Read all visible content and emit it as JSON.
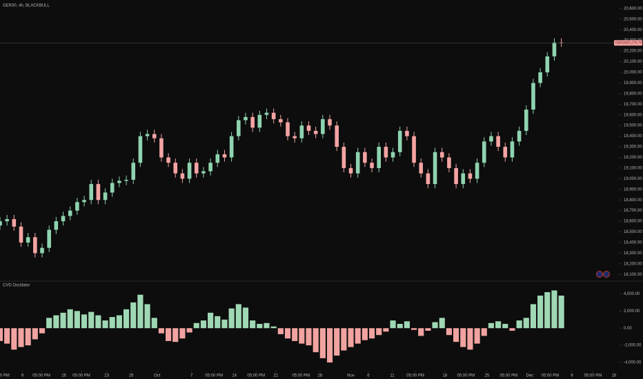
{
  "title": "GER30, 4h, BLACKBULL",
  "chart_data": [
    {
      "type": "candlestick",
      "symbol_tag": "GER30",
      "last_price": {
        "value": 20276.7,
        "label": "20,276.70"
      },
      "up_color": "#8fd3b0",
      "down_color": "#f4a3a3",
      "open": [
        18560,
        18600,
        18620,
        18550,
        18400,
        18450,
        18300,
        18350,
        18520,
        18600,
        18650,
        18700,
        18780,
        18800,
        18950,
        18800,
        18870,
        18960,
        18980,
        18990,
        19150,
        19400,
        19420,
        19380,
        19200,
        19150,
        19050,
        19000,
        19150,
        19050,
        19070,
        19150,
        19230,
        19200,
        19400,
        19550,
        19580,
        19480,
        19600,
        19620,
        19560,
        19530,
        19400,
        19380,
        19500,
        19450,
        19420,
        19560,
        19500,
        19300,
        19100,
        19050,
        19250,
        19150,
        19100,
        19300,
        19200,
        19250,
        19450,
        19400,
        19150,
        19050,
        18950,
        19250,
        19200,
        19100,
        18950,
        19050,
        19000,
        19150,
        19350,
        19400,
        19300,
        19200,
        19350,
        19450,
        19650,
        19900,
        20000,
        20150,
        20280
      ],
      "high": [
        18640,
        18660,
        18660,
        18590,
        18490,
        18490,
        18390,
        18560,
        18640,
        18690,
        18740,
        18820,
        18840,
        18990,
        18990,
        18910,
        19000,
        19020,
        19030,
        19190,
        19440,
        19460,
        19460,
        19420,
        19240,
        19190,
        19090,
        19190,
        19190,
        19110,
        19190,
        19270,
        19270,
        19440,
        19590,
        19620,
        19620,
        19640,
        19660,
        19660,
        19600,
        19570,
        19440,
        19540,
        19540,
        19490,
        19600,
        19600,
        19540,
        19340,
        19140,
        19290,
        19290,
        19190,
        19340,
        19340,
        19290,
        19490,
        19490,
        19440,
        19190,
        19090,
        19290,
        19290,
        19240,
        19140,
        19090,
        19090,
        19190,
        19390,
        19440,
        19440,
        19340,
        19390,
        19490,
        19690,
        19940,
        20040,
        20190,
        20320,
        20320
      ],
      "low": [
        18520,
        18560,
        18510,
        18360,
        18360,
        18260,
        18260,
        18310,
        18480,
        18560,
        18610,
        18660,
        18740,
        18760,
        18760,
        18760,
        18830,
        18920,
        18940,
        18950,
        19110,
        19360,
        19340,
        19160,
        19110,
        19010,
        18960,
        18960,
        19010,
        19010,
        19030,
        19110,
        19160,
        19160,
        19360,
        19510,
        19440,
        19440,
        19560,
        19520,
        19490,
        19360,
        19340,
        19340,
        19410,
        19380,
        19380,
        19460,
        19260,
        19060,
        19010,
        19010,
        19110,
        19060,
        19060,
        19160,
        19160,
        19210,
        19360,
        19110,
        19010,
        18910,
        18910,
        19160,
        19060,
        18910,
        18910,
        18960,
        18960,
        19110,
        19310,
        19260,
        19160,
        19160,
        19310,
        19410,
        19610,
        19860,
        19960,
        20110,
        20240
      ],
      "close": [
        18600,
        18620,
        18550,
        18400,
        18450,
        18300,
        18350,
        18520,
        18600,
        18650,
        18700,
        18780,
        18800,
        18950,
        18800,
        18870,
        18960,
        18980,
        18990,
        19150,
        19400,
        19420,
        19380,
        19200,
        19150,
        19050,
        19000,
        19150,
        19050,
        19070,
        19150,
        19230,
        19200,
        19400,
        19550,
        19580,
        19480,
        19600,
        19620,
        19560,
        19530,
        19400,
        19380,
        19500,
        19450,
        19420,
        19560,
        19500,
        19300,
        19100,
        19050,
        19250,
        19150,
        19100,
        19300,
        19200,
        19250,
        19450,
        19400,
        19150,
        19050,
        18950,
        19250,
        19200,
        19100,
        18950,
        19050,
        19000,
        19150,
        19350,
        19400,
        19300,
        19200,
        19350,
        19450,
        19650,
        19900,
        20000,
        20150,
        20280,
        20277
      ],
      "xlim": [
        0,
        88
      ],
      "ylim": [
        18050,
        20680
      ],
      "yticks": [
        {
          "value": 20600,
          "label": "20,600.00"
        },
        {
          "value": 20500,
          "label": "20,500.00"
        },
        {
          "value": 20400,
          "label": "20,400.00"
        },
        {
          "value": 20300,
          "label": "20,300.00"
        },
        {
          "value": 20200,
          "label": "20,200.00"
        },
        {
          "value": 20100,
          "label": "20,100.00"
        },
        {
          "value": 20000,
          "label": "20,000.00"
        },
        {
          "value": 19900,
          "label": "19,900.00"
        },
        {
          "value": 19800,
          "label": "19,800.00"
        },
        {
          "value": 19700,
          "label": "19,700.00"
        },
        {
          "value": 19600,
          "label": "19,600.00"
        },
        {
          "value": 19500,
          "label": "19,500.00"
        },
        {
          "value": 19400,
          "label": "19,400.00"
        },
        {
          "value": 19300,
          "label": "19,300.00"
        },
        {
          "value": 19200,
          "label": "19,200.00"
        },
        {
          "value": 19100,
          "label": "19,100.00"
        },
        {
          "value": 19000,
          "label": "19,000.00"
        },
        {
          "value": 18900,
          "label": "18,900.00"
        },
        {
          "value": 18800,
          "label": "18,800.00"
        },
        {
          "value": 18700,
          "label": "18,700.00"
        },
        {
          "value": 18600,
          "label": "18,600.00"
        },
        {
          "value": 18500,
          "label": "18,500.00"
        },
        {
          "value": 18400,
          "label": "18,400.00"
        },
        {
          "value": 18300,
          "label": "18,300.00"
        },
        {
          "value": 18200,
          "label": "18,200.00"
        },
        {
          "value": 18100,
          "label": "18,100.00"
        }
      ]
    },
    {
      "type": "bar",
      "title": "CVD Oscillator",
      "positive_color": "#9fd8b4",
      "negative_color": "#f0a3a0",
      "values": [
        -1500,
        -1800,
        -2500,
        -2200,
        -2000,
        -1300,
        -600,
        1200,
        1500,
        1800,
        2200,
        2000,
        1600,
        1900,
        1500,
        900,
        1300,
        1500,
        2200,
        3000,
        3900,
        2800,
        1200,
        -600,
        -1500,
        -1600,
        -1200,
        -500,
        600,
        900,
        1800,
        1400,
        1000,
        2300,
        2800,
        2400,
        900,
        500,
        600,
        200,
        -700,
        -1200,
        -1500,
        -1800,
        -2000,
        -2800,
        -3500,
        -4000,
        -3200,
        -2600,
        -2200,
        -1800,
        -1400,
        -1200,
        -800,
        -400,
        900,
        500,
        800,
        -200,
        -900,
        -300,
        700,
        1200,
        -800,
        -1600,
        -2200,
        -2500,
        -1800,
        -900,
        600,
        800,
        500,
        -300,
        900,
        1200,
        2800,
        3800,
        4200,
        4400,
        3800
      ],
      "xlim": [
        0,
        88
      ],
      "ylim": [
        -4800,
        5000
      ],
      "yticks": [
        {
          "value": 4000,
          "label": "4,000.00"
        },
        {
          "value": 2000,
          "label": "2,000.00"
        },
        {
          "value": 0,
          "label": "0.00"
        },
        {
          "value": -2000,
          "label": "-2,000.00"
        },
        {
          "value": -4000,
          "label": "-4,000.00"
        }
      ],
      "xticks": [
        {
          "value": 0.5,
          "label": "00 PM"
        },
        {
          "value": 3.2,
          "label": "9"
        },
        {
          "value": 5.9,
          "label": "05:00 PM"
        },
        {
          "value": 9.1,
          "label": "16"
        },
        {
          "value": 11.6,
          "label": "05:00 PM"
        },
        {
          "value": 15.2,
          "label": "23"
        },
        {
          "value": 18.7,
          "label": "26"
        },
        {
          "value": 22.4,
          "label": "Oct"
        },
        {
          "value": 27.3,
          "label": "7"
        },
        {
          "value": 30.5,
          "label": "05:00 PM"
        },
        {
          "value": 33.4,
          "label": "14"
        },
        {
          "value": 36.5,
          "label": "05:00 PM"
        },
        {
          "value": 39.3,
          "label": "21"
        },
        {
          "value": 42.9,
          "label": "05:00 PM"
        },
        {
          "value": 45.6,
          "label": "28"
        },
        {
          "value": 50,
          "label": "Nov"
        },
        {
          "value": 52.5,
          "label": "6"
        },
        {
          "value": 55.9,
          "label": "11"
        },
        {
          "value": 59.2,
          "label": "05:00 PM"
        },
        {
          "value": 63.4,
          "label": "18"
        },
        {
          "value": 66.4,
          "label": "05:00 PM"
        },
        {
          "value": 69.4,
          "label": "25"
        },
        {
          "value": 72.5,
          "label": "05:00 PM"
        },
        {
          "value": 75.5,
          "label": "Dec"
        },
        {
          "value": 78.4,
          "label": "05:00 PM"
        },
        {
          "value": 81.5,
          "label": "9"
        },
        {
          "value": 84.5,
          "label": "05:00 PM"
        },
        {
          "value": 87.5,
          "label": "16"
        }
      ]
    }
  ]
}
